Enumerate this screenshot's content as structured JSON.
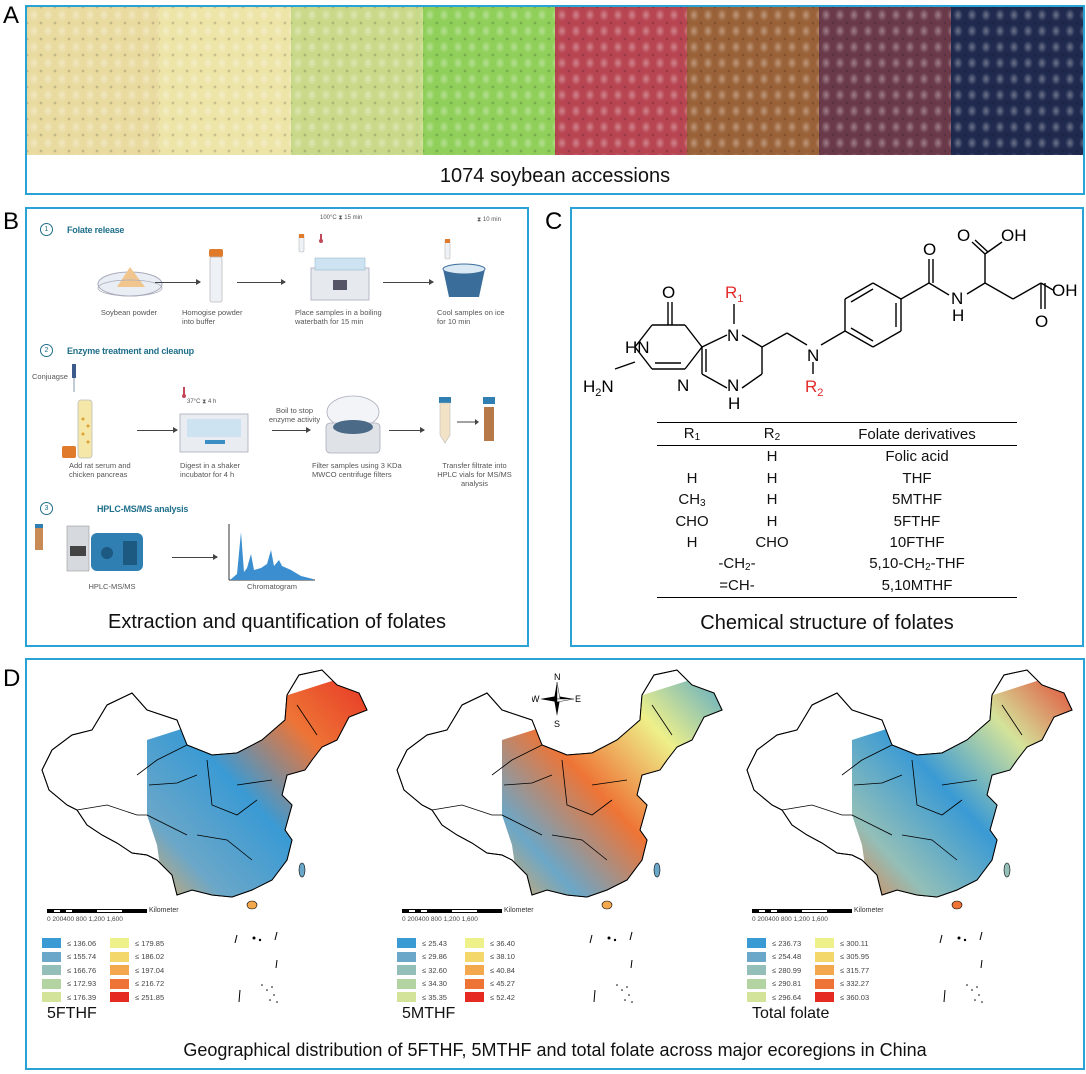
{
  "panels": {
    "A": {
      "letter": "A",
      "caption": "1074 soybean accessions",
      "seed_colors": [
        "#e9dba0",
        "#ede4a8",
        "#c9d98a",
        "#8fcf5a",
        "#b84552",
        "#9a6238",
        "#6b3a4a",
        "#1f2a4e"
      ]
    },
    "B": {
      "letter": "B",
      "caption": "Extraction and quantification of folates",
      "steps": [
        {
          "number": "1",
          "title": "Folate release",
          "items": [
            "Soybean powder",
            "Homogise powder into buffer",
            "Place samples in a boiling waterbath for 15 min",
            "Cool samples on ice for 10 min"
          ],
          "conditions": {
            "temp": "100°C",
            "time": "15 min",
            "cool_time": "10 min"
          }
        },
        {
          "number": "2",
          "title": "Enzyme treatment and cleanup",
          "reagent": "Conjuagse",
          "items": [
            "Add rat serum and chicken pancreas",
            "Digest in a shaker incubator for 4 h",
            "Filter samples using 3 KDa MWCO centrifuge filters",
            "Transfer filtrate into HPLC vials for MS/MS analysis"
          ],
          "boil_note": "Boil to stop enzyme activity",
          "conditions": {
            "temp": "37°C",
            "time": "4 h"
          }
        },
        {
          "number": "3",
          "title": "HPLC-MS/MS analysis",
          "items": [
            "HPLC-MS/MS",
            "Chromatogram"
          ]
        }
      ]
    },
    "C": {
      "letter": "C",
      "caption": "Chemical structure of folates",
      "structure_labels": {
        "r1": "R",
        "r1_sub": "1",
        "r2": "R",
        "r2_sub": "2",
        "oh1": "OH",
        "oh2": "OH",
        "nh2": "H",
        "nh2_sub": "2",
        "nh2_n": "N",
        "hn": "HN",
        "n": "N",
        "h": "H",
        "o": "O"
      },
      "table": {
        "headers": [
          "R1",
          "R2",
          "Folate derivatives"
        ],
        "rows": [
          {
            "r1": "",
            "r2": "H",
            "derivative": "Folic acid"
          },
          {
            "r1": "H",
            "r2": "H",
            "derivative": "THF"
          },
          {
            "r1": "CH3",
            "r2": "H",
            "derivative": "5MTHF"
          },
          {
            "r1": "CHO",
            "r2": "H",
            "derivative": "5FTHF"
          },
          {
            "r1": "H",
            "r2": "CHO",
            "derivative": "10FTHF"
          },
          {
            "r1r2": "-CH2-",
            "derivative": "5,10-CH2-THF"
          },
          {
            "r1r2": "=CH-",
            "derivative": "5,10MTHF"
          }
        ]
      }
    },
    "D": {
      "letter": "D",
      "caption": "Geographical distribution of 5FTHF, 5MTHF and total folate across major ecoregions in China",
      "compass": {
        "n": "N",
        "s": "S",
        "e": "E",
        "w": "W"
      },
      "scalebar": {
        "ticks": "0  200400     800     1,200   1,600",
        "unit": "Kilometer"
      },
      "legend_colors": [
        "#3a9ad4",
        "#6ba7c8",
        "#93bfb8",
        "#b4d3a3",
        "#d4e39a",
        "#eef08a",
        "#f3d76a",
        "#f4a84e",
        "#ee7436",
        "#e52a22"
      ],
      "maps": [
        {
          "title": "5FTHF",
          "legend": [
            "≤ 136.06",
            "≤ 155.74",
            "≤ 166.76",
            "≤ 172.93",
            "≤ 176.39",
            "≤ 179.85",
            "≤ 186.02",
            "≤ 197.04",
            "≤ 216.72",
            "≤ 251.85"
          ]
        },
        {
          "title": "5MTHF",
          "legend": [
            "≤ 25.43",
            "≤ 29.86",
            "≤ 32.60",
            "≤ 34.30",
            "≤ 35.35",
            "≤ 36.40",
            "≤ 38.10",
            "≤ 40.84",
            "≤ 45.27",
            "≤ 52.42"
          ]
        },
        {
          "title": "Total folate",
          "legend": [
            "≤ 236.73",
            "≤ 254.48",
            "≤ 280.99",
            "≤ 290.81",
            "≤ 296.64",
            "≤ 300.11",
            "≤ 305.95",
            "≤ 315.77",
            "≤ 332.27",
            "≤ 360.03"
          ]
        }
      ]
    }
  }
}
